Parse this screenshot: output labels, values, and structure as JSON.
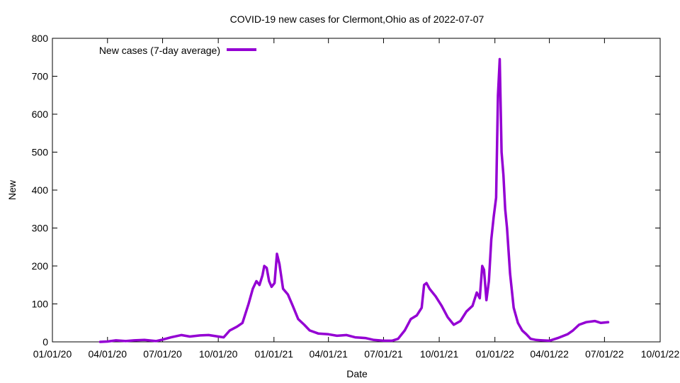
{
  "chart_data": {
    "type": "line",
    "title": "COVID-19 new cases for Clermont,Ohio as of 2022-07-07",
    "xlabel": "Date",
    "ylabel": "New",
    "x_range": [
      "2020-01-01",
      "2022-10-01"
    ],
    "ylim": [
      0,
      800
    ],
    "x_ticks": [
      "01/01/20",
      "04/01/20",
      "07/01/20",
      "10/01/20",
      "01/01/21",
      "04/01/21",
      "07/01/21",
      "10/01/21",
      "01/01/22",
      "04/01/22",
      "07/01/22",
      "10/01/22"
    ],
    "y_ticks": [
      0,
      100,
      200,
      300,
      400,
      500,
      600,
      700,
      800
    ],
    "grid": false,
    "legend_position": "top-left",
    "series": [
      {
        "name": "New cases (7-day average)",
        "color": "#9400D3",
        "points": [
          [
            "2020-03-20",
            0
          ],
          [
            "2020-04-01",
            1
          ],
          [
            "2020-04-15",
            4
          ],
          [
            "2020-05-01",
            2
          ],
          [
            "2020-05-15",
            4
          ],
          [
            "2020-06-01",
            5
          ],
          [
            "2020-06-20",
            2
          ],
          [
            "2020-07-01",
            6
          ],
          [
            "2020-07-15",
            12
          ],
          [
            "2020-08-01",
            18
          ],
          [
            "2020-08-15",
            14
          ],
          [
            "2020-09-01",
            17
          ],
          [
            "2020-09-15",
            18
          ],
          [
            "2020-10-01",
            14
          ],
          [
            "2020-10-10",
            12
          ],
          [
            "2020-10-20",
            30
          ],
          [
            "2020-11-01",
            40
          ],
          [
            "2020-11-10",
            50
          ],
          [
            "2020-11-20",
            100
          ],
          [
            "2020-11-27",
            140
          ],
          [
            "2020-12-03",
            160
          ],
          [
            "2020-12-08",
            150
          ],
          [
            "2020-12-13",
            175
          ],
          [
            "2020-12-16",
            200
          ],
          [
            "2020-12-20",
            195
          ],
          [
            "2020-12-24",
            160
          ],
          [
            "2020-12-28",
            145
          ],
          [
            "2021-01-02",
            155
          ],
          [
            "2021-01-06",
            232
          ],
          [
            "2021-01-10",
            205
          ],
          [
            "2021-01-16",
            140
          ],
          [
            "2021-01-24",
            125
          ],
          [
            "2021-02-01",
            95
          ],
          [
            "2021-02-10",
            60
          ],
          [
            "2021-02-20",
            45
          ],
          [
            "2021-03-01",
            30
          ],
          [
            "2021-03-15",
            22
          ],
          [
            "2021-04-01",
            20
          ],
          [
            "2021-04-15",
            16
          ],
          [
            "2021-05-01",
            18
          ],
          [
            "2021-05-15",
            12
          ],
          [
            "2021-06-01",
            10
          ],
          [
            "2021-06-15",
            5
          ],
          [
            "2021-07-01",
            3
          ],
          [
            "2021-07-15",
            3
          ],
          [
            "2021-07-25",
            8
          ],
          [
            "2021-08-05",
            30
          ],
          [
            "2021-08-15",
            60
          ],
          [
            "2021-08-25",
            70
          ],
          [
            "2021-09-02",
            90
          ],
          [
            "2021-09-06",
            150
          ],
          [
            "2021-09-10",
            155
          ],
          [
            "2021-09-15",
            140
          ],
          [
            "2021-09-25",
            120
          ],
          [
            "2021-10-05",
            95
          ],
          [
            "2021-10-15",
            65
          ],
          [
            "2021-10-25",
            45
          ],
          [
            "2021-11-05",
            55
          ],
          [
            "2021-11-15",
            80
          ],
          [
            "2021-11-25",
            95
          ],
          [
            "2021-12-02",
            130
          ],
          [
            "2021-12-07",
            115
          ],
          [
            "2021-12-11",
            200
          ],
          [
            "2021-12-14",
            190
          ],
          [
            "2021-12-18",
            110
          ],
          [
            "2021-12-22",
            160
          ],
          [
            "2021-12-26",
            270
          ],
          [
            "2021-12-30",
            330
          ],
          [
            "2022-01-03",
            380
          ],
          [
            "2022-01-06",
            650
          ],
          [
            "2022-01-09",
            745
          ],
          [
            "2022-01-12",
            500
          ],
          [
            "2022-01-15",
            440
          ],
          [
            "2022-01-18",
            350
          ],
          [
            "2022-01-21",
            300
          ],
          [
            "2022-01-26",
            180
          ],
          [
            "2022-02-01",
            90
          ],
          [
            "2022-02-08",
            50
          ],
          [
            "2022-02-15",
            30
          ],
          [
            "2022-02-22",
            20
          ],
          [
            "2022-03-01",
            8
          ],
          [
            "2022-03-10",
            5
          ],
          [
            "2022-03-20",
            4
          ],
          [
            "2022-04-01",
            3
          ],
          [
            "2022-04-15",
            10
          ],
          [
            "2022-05-01",
            20
          ],
          [
            "2022-05-10",
            30
          ],
          [
            "2022-05-20",
            45
          ],
          [
            "2022-06-01",
            52
          ],
          [
            "2022-06-15",
            55
          ],
          [
            "2022-06-25",
            50
          ],
          [
            "2022-07-07",
            52
          ]
        ]
      }
    ]
  }
}
